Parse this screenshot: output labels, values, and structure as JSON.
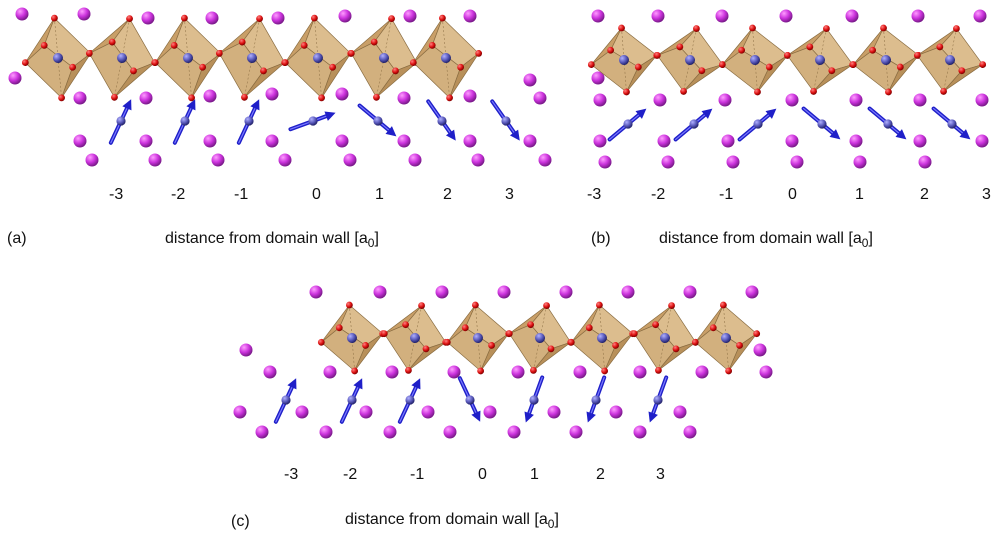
{
  "colors": {
    "octahedron_fill": "#d2b07e",
    "octahedron_edge": "#8a6d42",
    "oxygen": "#dd1111",
    "a_site": "#cc33dd",
    "b_site": "#5656b8",
    "moment_arrow": "#1f1fc8"
  },
  "icons": {
    "octahedron": "octahedron-icon",
    "oxygen": "oxygen-atom-icon",
    "a_site": "a-site-atom-icon",
    "b_site": "b-site-atom-icon",
    "arrow": "spin-arrow-icon"
  },
  "panels": [
    {
      "id": "a",
      "letter": "(a)",
      "axis_prefix": "distance from domain wall [a",
      "axis_sub": "0",
      "axis_suffix": "]",
      "ticks": [
        "-3",
        "-2",
        "-1",
        "0",
        "1",
        "2",
        "3"
      ],
      "arrow_angles_deg": [
        -65,
        -65,
        -65,
        -20,
        40,
        55,
        55
      ]
    },
    {
      "id": "b",
      "letter": "(b)",
      "axis_prefix": "distance from domain wall [a",
      "axis_sub": "0",
      "axis_suffix": "]",
      "ticks": [
        "-3",
        "-2",
        "-1",
        "0",
        "1",
        "2",
        "3"
      ],
      "arrow_angles_deg": [
        -40,
        -40,
        -40,
        40,
        40,
        40,
        40
      ]
    },
    {
      "id": "c",
      "letter": "(c)",
      "axis_prefix": "distance from domain wall [a",
      "axis_sub": "0",
      "axis_suffix": "]",
      "ticks": [
        "-3",
        "-2",
        "-1",
        "0",
        "1",
        "2",
        "3"
      ],
      "arrow_angles_deg": [
        -65,
        -65,
        -65,
        65,
        110,
        110,
        110
      ]
    }
  ]
}
